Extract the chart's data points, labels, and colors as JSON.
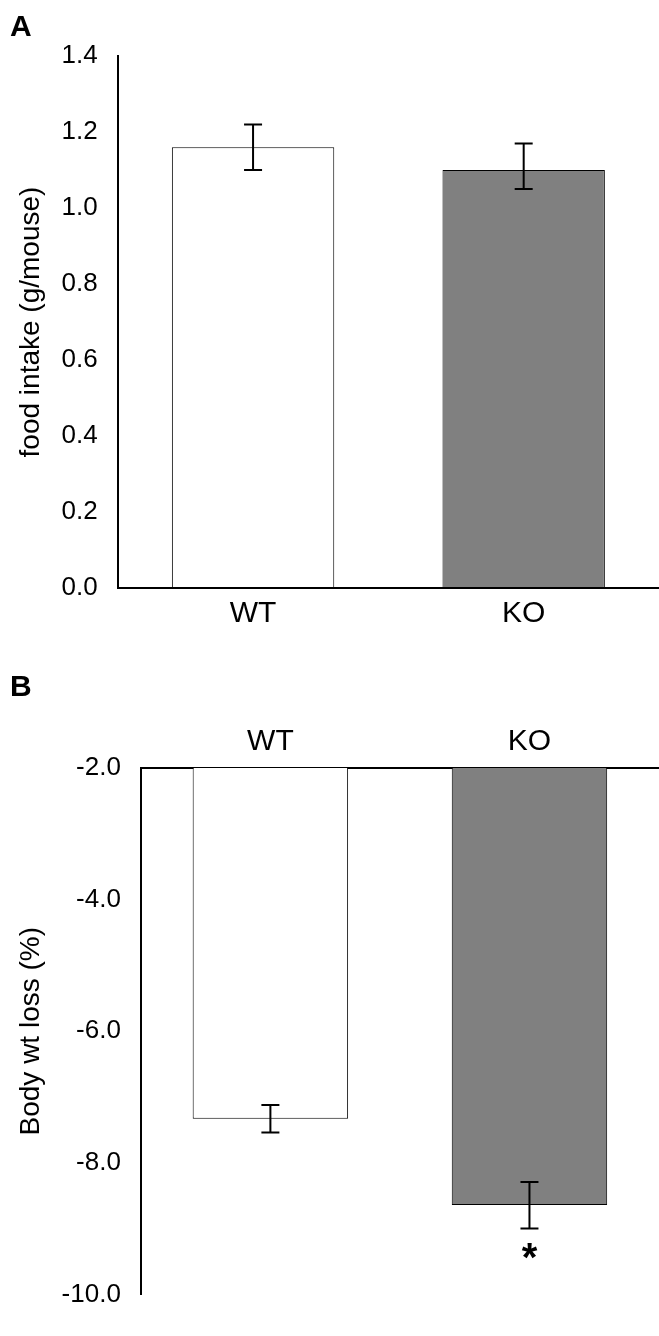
{
  "chart_data": [
    {
      "type": "bar",
      "title": "A",
      "ylabel": "food intake (g/mouse)",
      "categories": [
        "WT",
        "KO"
      ],
      "values": [
        1.16,
        1.1
      ],
      "colors": [
        "#ffffff",
        "#808080"
      ],
      "errors": [
        [
          1.1,
          1.22
        ],
        [
          1.05,
          1.17
        ]
      ],
      "ylim": [
        0,
        1.4
      ],
      "yticks": [
        {
          "value": 0,
          "label": "0.0"
        },
        {
          "value": 0.2,
          "label": "0.2"
        },
        {
          "value": 0.4,
          "label": "0.4"
        },
        {
          "value": 0.6,
          "label": "0.6"
        },
        {
          "value": 0.8,
          "label": "0.8"
        },
        {
          "value": 1,
          "label": "1.0"
        },
        {
          "value": 1.2,
          "label": "1.2"
        },
        {
          "value": 1.4,
          "label": "1.4"
        }
      ],
      "grid": false,
      "legend": false
    },
    {
      "type": "bar",
      "title": "B",
      "ylabel": "Body wt loss (%)",
      "categories": [
        "WT",
        "KO"
      ],
      "values": [
        -7.33,
        -8.64
      ],
      "colors": [
        "#ffffff",
        "#808080"
      ],
      "errors": [
        [
          -7.54,
          -7.12
        ],
        [
          -9.0,
          -8.29
        ]
      ],
      "ylim": [
        -10,
        -2
      ],
      "yticks": [
        {
          "value": -10,
          "label": "-10.0"
        },
        {
          "value": -8,
          "label": "-8.0"
        },
        {
          "value": -6,
          "label": "-6.0"
        },
        {
          "value": -4,
          "label": "-4.0"
        },
        {
          "value": -2,
          "label": "-2.0"
        }
      ],
      "grid": false,
      "legend": false,
      "annotations": [
        "*"
      ]
    }
  ]
}
